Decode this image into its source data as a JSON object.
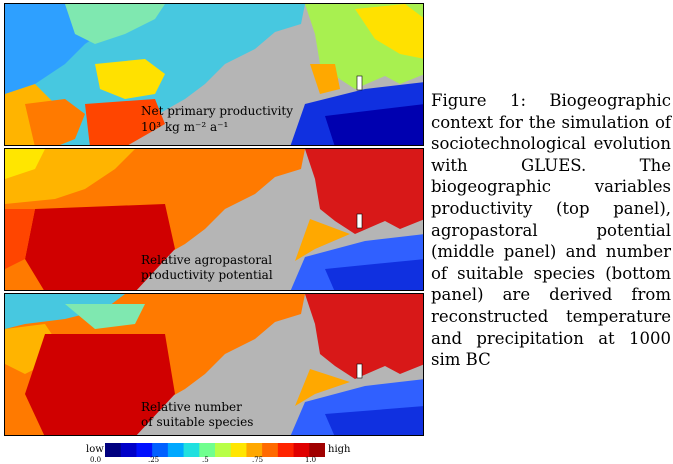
{
  "panels": [
    {
      "label_line1": "Net primary productivity",
      "label_line2": "10³ kg m⁻² a⁻¹"
    },
    {
      "label_line1": "Relative agropastoral",
      "label_line2": "productivity potential"
    },
    {
      "label_line1": "Relative number",
      "label_line2": "of suitable species"
    }
  ],
  "caption": "Figure 1: Biogeographic context for the simulation of sociotechnological evolution with GLUES. The biogeographic variables productivity (top panel), agropastoral potential (middle panel) and number of suitable species (bottom panel) are derived from reconstructed temperature and precipitation at 1000 sim BC",
  "colorbar": {
    "low_label": "low",
    "high_label": "high",
    "ticks": [
      "0.0",
      ".25",
      ".5",
      ".75",
      "1.0"
    ],
    "colors": [
      "#00007f",
      "#0000c8",
      "#0010ff",
      "#0060ff",
      "#00a8ff",
      "#20e0df",
      "#70ff8f",
      "#b8ff47",
      "#ffe600",
      "#ffa800",
      "#ff6a00",
      "#ff2400",
      "#e00000",
      "#a00000"
    ]
  }
}
